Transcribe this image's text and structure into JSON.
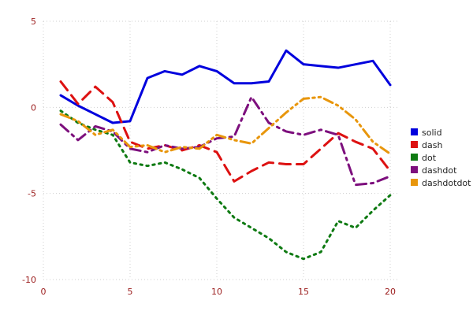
{
  "chart_data": {
    "type": "line",
    "title": "",
    "xlabel": "",
    "ylabel": "",
    "xlim": [
      0,
      20.5
    ],
    "ylim": [
      -10,
      5
    ],
    "xticks": [
      0,
      5,
      10,
      15,
      20
    ],
    "yticks": [
      -10,
      -5,
      0,
      5
    ],
    "grid": true,
    "legend_position": "right",
    "tick_label_color": "#9b1c1c",
    "grid_color": "#cfcfcf",
    "background_color": "#ffffff",
    "x": [
      1,
      2,
      3,
      4,
      5,
      6,
      7,
      8,
      9,
      10,
      11,
      12,
      13,
      14,
      15,
      16,
      17,
      18,
      19,
      20
    ],
    "series": [
      {
        "name": "solid",
        "color": "#0000dd",
        "dash": "solid",
        "values": [
          0.7,
          0.1,
          -0.4,
          -0.9,
          -0.8,
          1.7,
          2.1,
          1.9,
          2.4,
          2.1,
          1.4,
          1.4,
          1.5,
          3.3,
          2.5,
          2.4,
          2.3,
          2.5,
          2.7,
          1.3
        ]
      },
      {
        "name": "dash",
        "color": "#dd1111",
        "dash": "dash",
        "values": [
          1.5,
          0.2,
          1.2,
          0.3,
          -2.0,
          -2.4,
          -2.2,
          -2.5,
          -2.2,
          -2.6,
          -4.3,
          -3.7,
          -3.2,
          -3.3,
          -3.3,
          -2.4,
          -1.5,
          -2.0,
          -2.4,
          -3.7
        ]
      },
      {
        "name": "dot",
        "color": "#0e7a12",
        "dash": "dot",
        "values": [
          -0.2,
          -0.9,
          -1.3,
          -1.6,
          -3.2,
          -3.4,
          -3.2,
          -3.6,
          -4.1,
          -5.3,
          -6.4,
          -7.0,
          -7.6,
          -8.4,
          -8.8,
          -8.4,
          -6.6,
          -7.0,
          -6.0,
          -5.1
        ]
      },
      {
        "name": "dashdot",
        "color": "#7d0f7d",
        "dash": "dashdot",
        "values": [
          -1.0,
          -1.9,
          -1.1,
          -1.4,
          -2.4,
          -2.6,
          -2.2,
          -2.4,
          -2.3,
          -1.8,
          -1.7,
          0.6,
          -0.9,
          -1.4,
          -1.6,
          -1.3,
          -1.6,
          -4.5,
          -4.4,
          -4.0
        ]
      },
      {
        "name": "dashdotdot",
        "color": "#e8960c",
        "dash": "dashdotdot",
        "values": [
          -0.4,
          -0.8,
          -1.6,
          -1.3,
          -2.3,
          -2.2,
          -2.6,
          -2.3,
          -2.4,
          -1.6,
          -1.9,
          -2.1,
          -1.2,
          -0.3,
          0.5,
          0.6,
          0.1,
          -0.7,
          -2.0,
          -2.7
        ]
      }
    ]
  }
}
